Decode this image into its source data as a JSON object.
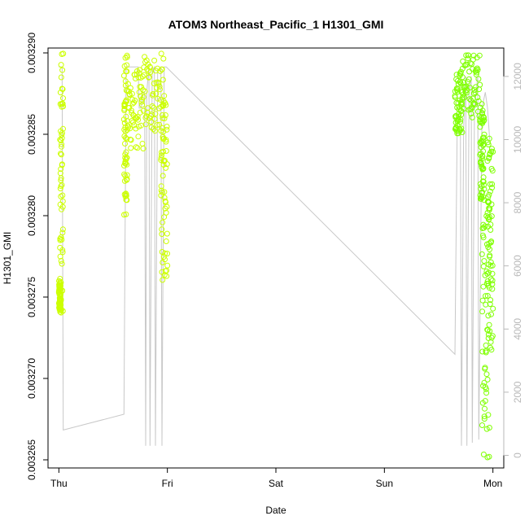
{
  "chart_data": {
    "type": "scatter",
    "title": "ATOM3 Northeast_Pacific_1 H1301_GMI",
    "xlabel": "Date",
    "ylabel": "H1301_GMI",
    "x_tick_labels": [
      "Thu",
      "Fri",
      "Sat",
      "Sun",
      "Mon"
    ],
    "xlim": [
      -0.1,
      4.1
    ],
    "ylim": [
      0.0032645,
      0.0032903
    ],
    "y_ticks": [
      "0.003265",
      "0.003270",
      "0.003275",
      "0.003280",
      "0.003285",
      "0.003290"
    ],
    "y2_ticks": [
      "0",
      "2000",
      "4000",
      "6000",
      "8000",
      "10000",
      "12000"
    ],
    "y2lim": [
      -400,
      12900
    ],
    "grid": false,
    "colors": {
      "points_early": "#ccff00",
      "points_late": "#7fff00",
      "altitude_line": "#c8c8c8",
      "axis": "#000000",
      "right_axis": "#b8b8b8"
    },
    "series": [
      {
        "kind": "points",
        "color": "#ccff00",
        "clusters": [
          {
            "x_start": 0.0,
            "x_end": 0.02,
            "y_min": 0.003274,
            "y_max": 0.003276
          },
          {
            "x_start": 0.01,
            "x_end": 0.04,
            "y_min": 0.003274,
            "y_max": 0.00329
          },
          {
            "x_start": 0.6,
            "x_end": 0.63,
            "y_min": 0.00328,
            "y_max": 0.00329
          },
          {
            "x_start": 0.63,
            "x_end": 0.78,
            "y_min": 0.003284,
            "y_max": 0.003289
          },
          {
            "x_start": 0.78,
            "x_end": 0.97,
            "y_min": 0.003285,
            "y_max": 0.00329
          },
          {
            "x_start": 0.94,
            "x_end": 1.0,
            "y_min": 0.003276,
            "y_max": 0.003287
          }
        ]
      },
      {
        "kind": "points",
        "color": "#7fff00",
        "clusters": [
          {
            "x_start": 3.65,
            "x_end": 3.72,
            "y_min": 0.003285,
            "y_max": 0.003289
          },
          {
            "x_start": 3.72,
            "x_end": 3.88,
            "y_min": 0.003286,
            "y_max": 0.00329
          },
          {
            "x_start": 3.88,
            "x_end": 3.92,
            "y_min": 0.003281,
            "y_max": 0.003287
          },
          {
            "x_start": 3.9,
            "x_end": 3.97,
            "y_min": 0.003265,
            "y_max": 0.003281
          },
          {
            "x_start": 3.95,
            "x_end": 4.0,
            "y_min": 0.003271,
            "y_max": 0.003285
          }
        ]
      },
      {
        "kind": "line",
        "axis": "right",
        "color": "#c8c8c8",
        "points": [
          [
            0.0,
            12300
          ],
          [
            0.03,
            12300
          ],
          [
            0.04,
            800
          ],
          [
            0.6,
            1300
          ],
          [
            0.62,
            12300
          ],
          [
            0.73,
            12300
          ],
          [
            0.74,
            11000
          ],
          [
            0.76,
            11000
          ],
          [
            0.77,
            11500
          ],
          [
            0.79,
            11500
          ],
          [
            0.8,
            300
          ],
          [
            0.81,
            11500
          ],
          [
            0.83,
            12300
          ],
          [
            0.84,
            300
          ],
          [
            0.86,
            12200
          ],
          [
            0.88,
            12300
          ],
          [
            0.89,
            300
          ],
          [
            0.91,
            12200
          ],
          [
            0.94,
            12300
          ],
          [
            0.95,
            300
          ],
          [
            0.97,
            12300
          ],
          [
            0.99,
            12300
          ],
          [
            3.65,
            3200
          ],
          [
            3.67,
            10300
          ],
          [
            3.7,
            10300
          ],
          [
            3.71,
            300
          ],
          [
            3.73,
            10300
          ],
          [
            3.75,
            12000
          ],
          [
            3.76,
            300
          ],
          [
            3.78,
            11500
          ],
          [
            3.8,
            12000
          ],
          [
            3.81,
            400
          ],
          [
            3.83,
            11000
          ],
          [
            3.86,
            12000
          ],
          [
            3.87,
            500
          ],
          [
            3.9,
            11000
          ],
          [
            3.93,
            11500
          ],
          [
            3.95,
            11000
          ],
          [
            3.97,
            10000
          ]
        ]
      }
    ]
  }
}
